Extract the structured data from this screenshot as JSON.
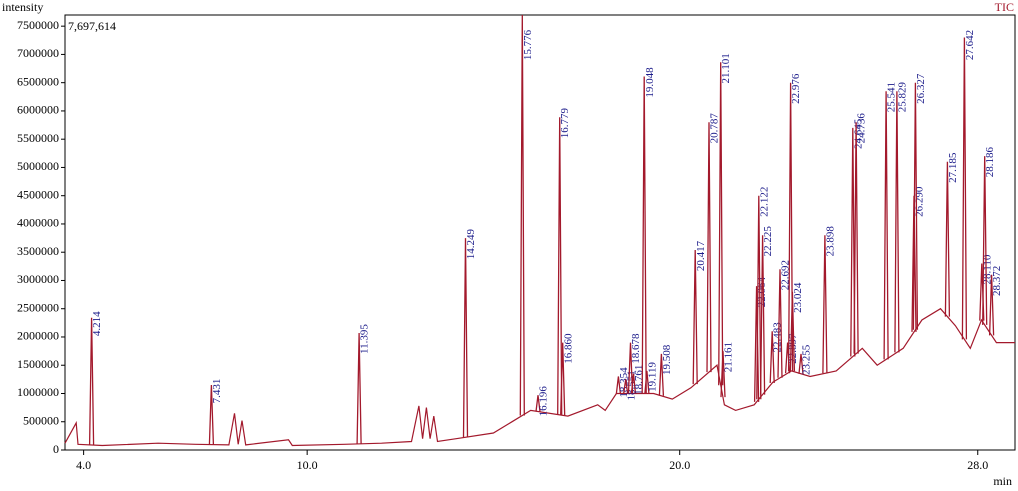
{
  "chart_data": {
    "type": "line",
    "y_axis_label": "intensity",
    "x_axis_label": "min",
    "trace_label": "TIC",
    "max_intensity_label": "7,697,614",
    "xlim": [
      3.5,
      29.0
    ],
    "ylim": [
      0,
      7697614
    ],
    "xticks": [
      {
        "value": 4,
        "label": "4.0"
      },
      {
        "value": 10,
        "label": "10.0"
      },
      {
        "value": 20,
        "label": "20.0"
      },
      {
        "value": 28,
        "label": "28.0"
      }
    ],
    "yticks": [
      0,
      500000,
      1000000,
      1500000,
      2000000,
      2500000,
      3000000,
      3500000,
      4000000,
      4500000,
      5000000,
      5500000,
      6000000,
      6500000,
      7000000,
      7500000
    ],
    "series": [
      {
        "color": "#a3192c",
        "x": [
          3.5,
          3.8,
          3.85,
          4.5,
          6,
          7,
          7.9,
          8.05,
          8.15,
          8.25,
          8.35,
          9.5,
          9.6,
          11,
          12,
          12.8,
          13.0,
          13.1,
          13.2,
          13.3,
          13.4,
          13.5,
          14.0,
          15.0,
          15.5,
          16.0,
          17.0,
          17.8,
          18.0,
          18.3,
          19.3,
          19.8,
          20.3,
          21.0,
          21.2,
          21.5,
          22.0,
          22.5,
          23.0,
          23.5,
          24.2,
          24.9,
          25.3,
          26.0,
          26.5,
          27.0,
          27.4,
          27.8,
          28.1,
          28.5,
          29.0
        ],
        "values": [
          120000,
          480000,
          100000,
          80000,
          120000,
          100000,
          90000,
          650000,
          100000,
          520000,
          90000,
          180000,
          80000,
          100000,
          120000,
          150000,
          780000,
          200000,
          750000,
          200000,
          600000,
          150000,
          200000,
          300000,
          500000,
          700000,
          600000,
          800000,
          700000,
          1000000,
          1000000,
          900000,
          1100000,
          1500000,
          800000,
          700000,
          800000,
          1200000,
          1400000,
          1300000,
          1400000,
          1800000,
          1500000,
          1800000,
          2300000,
          2500000,
          2200000,
          1800000,
          2300000,
          1900000,
          1900000
        ]
      }
    ],
    "peaks": {
      "color": "#a3192c",
      "label_color": "#1b1b8a",
      "x": [
        4.214,
        7.431,
        11.395,
        14.249,
        15.776,
        16.196,
        16.779,
        16.86,
        18.354,
        18.551,
        18.678,
        18.761,
        19.048,
        19.119,
        19.508,
        20.417,
        20.787,
        21.101,
        21.161,
        22.064,
        22.122,
        22.225,
        22.483,
        22.692,
        22.897,
        22.976,
        23.024,
        23.255,
        23.898,
        24.645,
        24.736,
        25.541,
        25.829,
        26.29,
        26.327,
        27.185,
        27.642,
        28.11,
        28.186,
        28.372
      ],
      "labels": [
        "4.214",
        "7.431",
        "11.395",
        "14.249",
        "15.776",
        "16.196",
        "16.779",
        "16.860",
        "18.354",
        "18.551",
        "18.678",
        "18.761",
        "19.048",
        "19.119",
        "19.508",
        "20.417",
        "20.787",
        "21.101",
        "21.161",
        "22.064",
        "22.122",
        "22.225",
        "22.483",
        "22.692",
        "22.897",
        "22.976",
        "23.024",
        "23.255",
        "23.898",
        "24.645",
        "24.736",
        "25.541",
        "25.829",
        "26.290",
        "26.327",
        "27.185",
        "27.642",
        "28.110",
        "28.186",
        "28.372"
      ],
      "values": [
        2340000,
        1150000,
        2070000,
        3750000,
        7697614,
        970000,
        5890000,
        1900000,
        1300000,
        1250000,
        1900000,
        1350000,
        6610000,
        1400000,
        1700000,
        3540000,
        5800000,
        6860000,
        1750000,
        2900000,
        4500000,
        3800000,
        2100000,
        3200000,
        1900000,
        6500000,
        2800000,
        1700000,
        3800000,
        5700000,
        5800000,
        6350000,
        6350000,
        4500000,
        6500000,
        5100000,
        7300000,
        3300000,
        5200000,
        3100000
      ]
    }
  }
}
